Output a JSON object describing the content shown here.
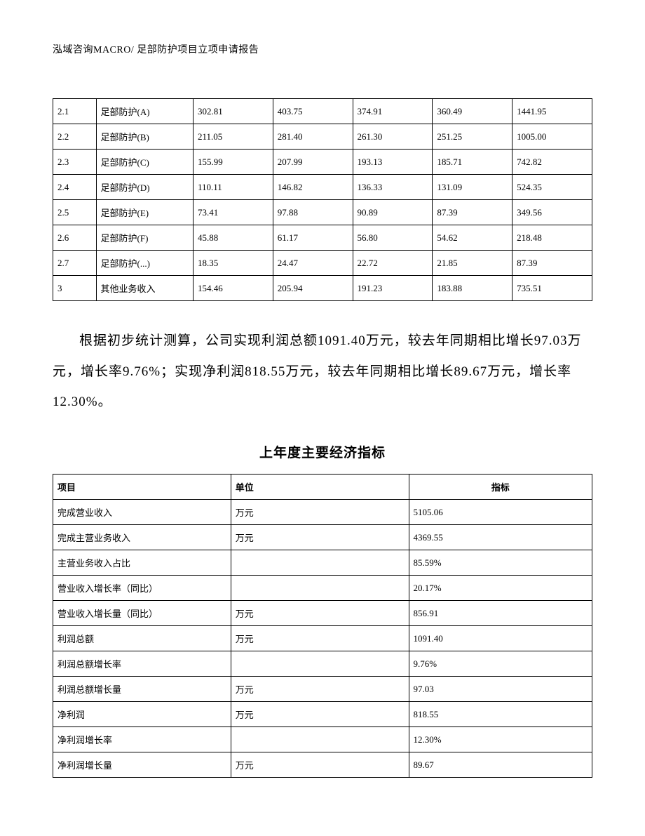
{
  "header": "泓域咨询MACRO/   足部防护项目立项申请报告",
  "table1": {
    "rows": [
      [
        "2.1",
        "足部防护(A)",
        "302.81",
        "403.75",
        "374.91",
        "360.49",
        "1441.95"
      ],
      [
        "2.2",
        "足部防护(B)",
        "211.05",
        "281.40",
        "261.30",
        "251.25",
        "1005.00"
      ],
      [
        "2.3",
        "足部防护(C)",
        "155.99",
        "207.99",
        "193.13",
        "185.71",
        "742.82"
      ],
      [
        "2.4",
        "足部防护(D)",
        "110.11",
        "146.82",
        "136.33",
        "131.09",
        "524.35"
      ],
      [
        "2.5",
        "足部防护(E)",
        "73.41",
        "97.88",
        "90.89",
        "87.39",
        "349.56"
      ],
      [
        "2.6",
        "足部防护(F)",
        "45.88",
        "61.17",
        "56.80",
        "54.62",
        "218.48"
      ],
      [
        "2.7",
        "足部防护(...)",
        "18.35",
        "24.47",
        "22.72",
        "21.85",
        "87.39"
      ],
      [
        "3",
        "其他业务收入",
        "154.46",
        "205.94",
        "191.23",
        "183.88",
        "735.51"
      ]
    ]
  },
  "paragraph": "根据初步统计测算，公司实现利润总额1091.40万元，较去年同期相比增长97.03万元，增长率9.76%；实现净利润818.55万元，较去年同期相比增长89.67万元，增长率12.30%。",
  "title2": "上年度主要经济指标",
  "table2": {
    "headers": [
      "项目",
      "单位",
      "指标"
    ],
    "rows": [
      [
        "完成营业收入",
        "万元",
        "5105.06"
      ],
      [
        "完成主营业务收入",
        "万元",
        "4369.55"
      ],
      [
        "主营业务收入占比",
        "",
        "85.59%"
      ],
      [
        "营业收入增长率（同比）",
        "",
        "20.17%"
      ],
      [
        "营业收入增长量（同比）",
        "万元",
        "856.91"
      ],
      [
        "利润总额",
        "万元",
        "1091.40"
      ],
      [
        "利润总额增长率",
        "",
        "9.76%"
      ],
      [
        "利润总额增长量",
        "万元",
        "97.03"
      ],
      [
        "净利润",
        "万元",
        "818.55"
      ],
      [
        "净利润增长率",
        "",
        "12.30%"
      ],
      [
        "净利润增长量",
        "万元",
        "89.67"
      ]
    ]
  }
}
